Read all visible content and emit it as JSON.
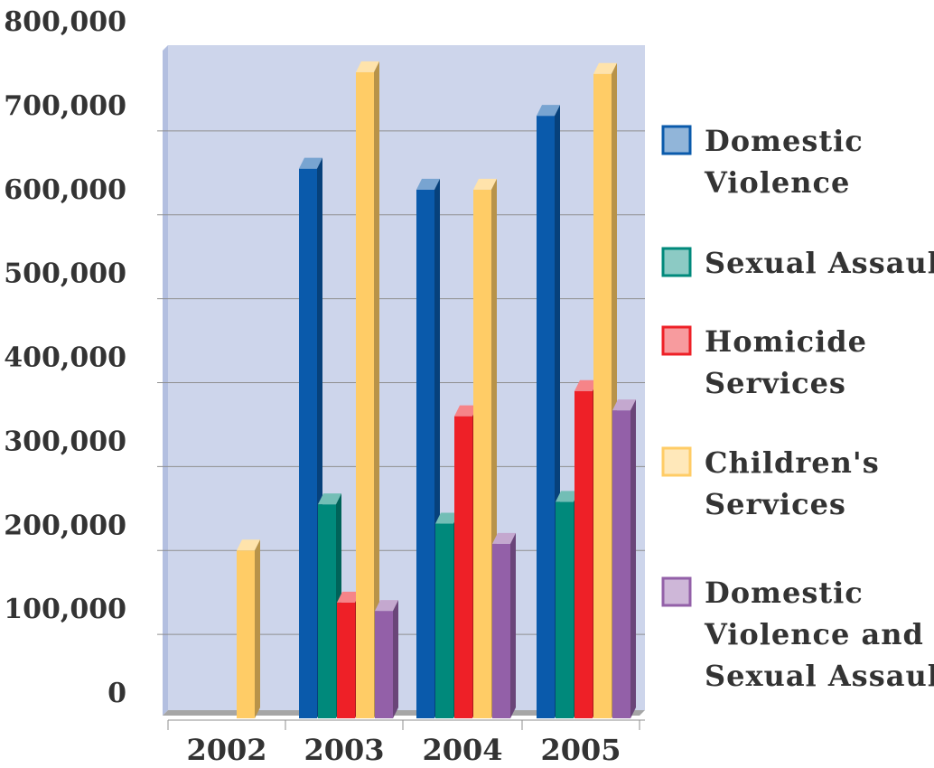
{
  "chart_data": {
    "type": "bar",
    "categories": [
      "2002",
      "2003",
      "2004",
      "2005"
    ],
    "ylim": [
      0,
      800000
    ],
    "yticks": [
      0,
      100000,
      200000,
      300000,
      400000,
      500000,
      600000,
      700000,
      800000
    ],
    "ytick_labels": [
      "0",
      "100,000",
      "200,000",
      "300,000",
      "400,000",
      "500,000",
      "600,000",
      "700,000",
      "800,000"
    ],
    "grid": true,
    "legend_position": "right",
    "series": [
      {
        "name": "Domestic Violence",
        "legend_lines": [
          "Domestic",
          "Violence"
        ],
        "color": "#0a5aab",
        "values": [
          null,
          655000,
          630000,
          718000
        ]
      },
      {
        "name": "Sexual Assault",
        "legend_lines": [
          "Sexual Assault"
        ],
        "color": "#00897b",
        "values": [
          null,
          255000,
          232000,
          258000
        ]
      },
      {
        "name": "Homicide Services",
        "legend_lines": [
          "Homicide",
          "Services"
        ],
        "color": "#ee2027",
        "values": [
          null,
          138000,
          360000,
          390000
        ]
      },
      {
        "name": "Children's Services",
        "legend_lines": [
          "Children's",
          "Services"
        ],
        "color": "#ffcc66",
        "values": [
          200000,
          770000,
          630000,
          768000
        ]
      },
      {
        "name": "Domestic Violence and Sexual Assault",
        "legend_lines": [
          "Domestic",
          "Violence and",
          "Sexual Assault"
        ],
        "color": "#9360a8",
        "values": [
          null,
          128000,
          208000,
          367000
        ]
      }
    ]
  }
}
